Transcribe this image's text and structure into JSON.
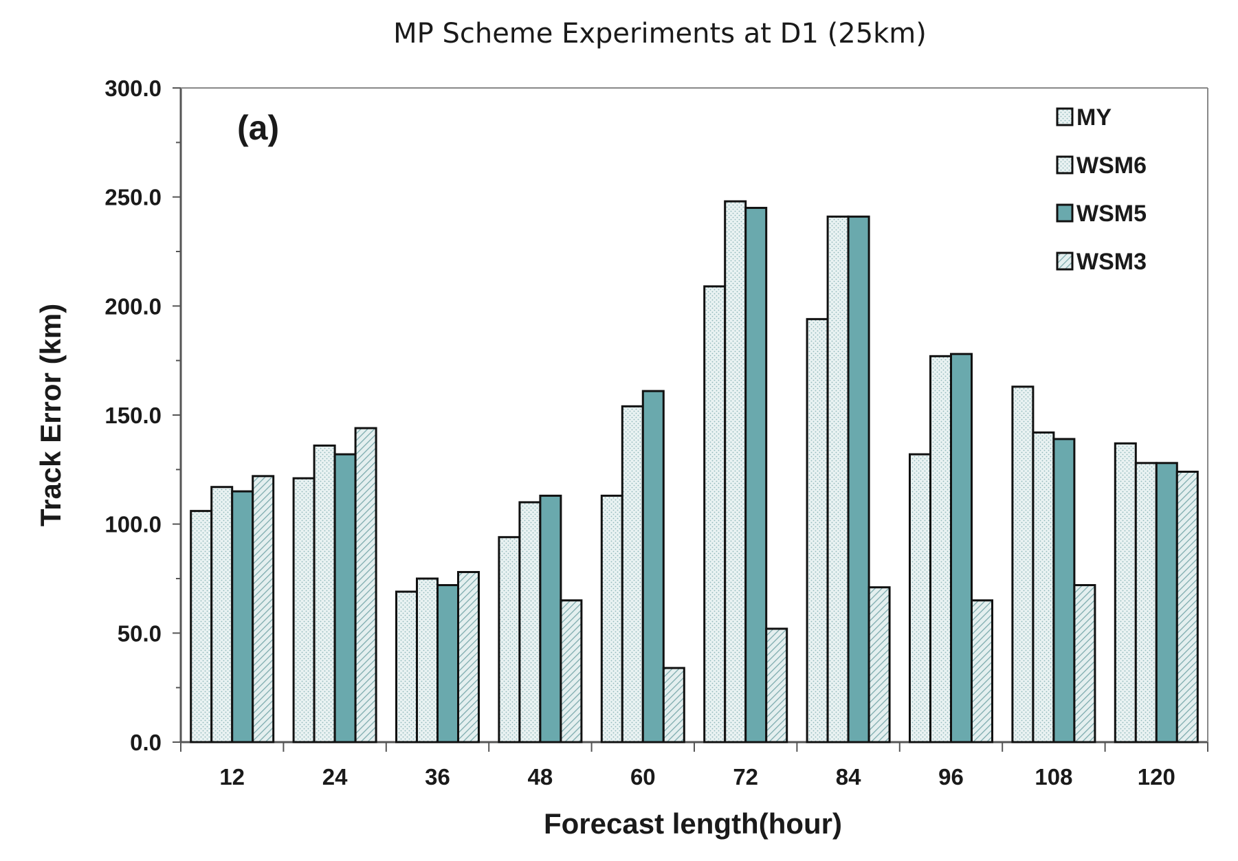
{
  "chart_data": {
    "type": "bar",
    "title": "MP Scheme Experiments at D1 (25km)",
    "panel_label": "(a)",
    "xlabel": "Forecast length(hour)",
    "ylabel": "Track Error (km)",
    "ylim": [
      0,
      300
    ],
    "y_ticks": [
      "0.0",
      "50.0",
      "100.0",
      "150.0",
      "200.0",
      "250.0",
      "300.0"
    ],
    "y_tick_values": [
      0,
      50,
      100,
      150,
      200,
      250,
      300
    ],
    "categories": [
      "12",
      "24",
      "36",
      "48",
      "60",
      "72",
      "84",
      "96",
      "108",
      "120"
    ],
    "legend_position": "top-right",
    "grid": false,
    "series": [
      {
        "name": "MY",
        "pattern": "dots",
        "color": "#e6f0f0",
        "values": [
          106,
          121,
          69,
          94,
          113,
          209,
          194,
          132,
          163,
          137
        ]
      },
      {
        "name": "WSM6",
        "pattern": "dots",
        "color": "#7fb8bb",
        "values": [
          117,
          136,
          75,
          110,
          154,
          248,
          241,
          177,
          142,
          128
        ]
      },
      {
        "name": "WSM5",
        "pattern": "solid",
        "color": "#6aa9ad",
        "values": [
          115,
          132,
          72,
          113,
          161,
          245,
          241,
          178,
          139,
          128
        ]
      },
      {
        "name": "WSM3",
        "pattern": "hatch",
        "color": "#cfe3e3",
        "values": [
          122,
          144,
          78,
          65,
          34,
          52,
          71,
          65,
          72,
          124
        ]
      }
    ]
  }
}
